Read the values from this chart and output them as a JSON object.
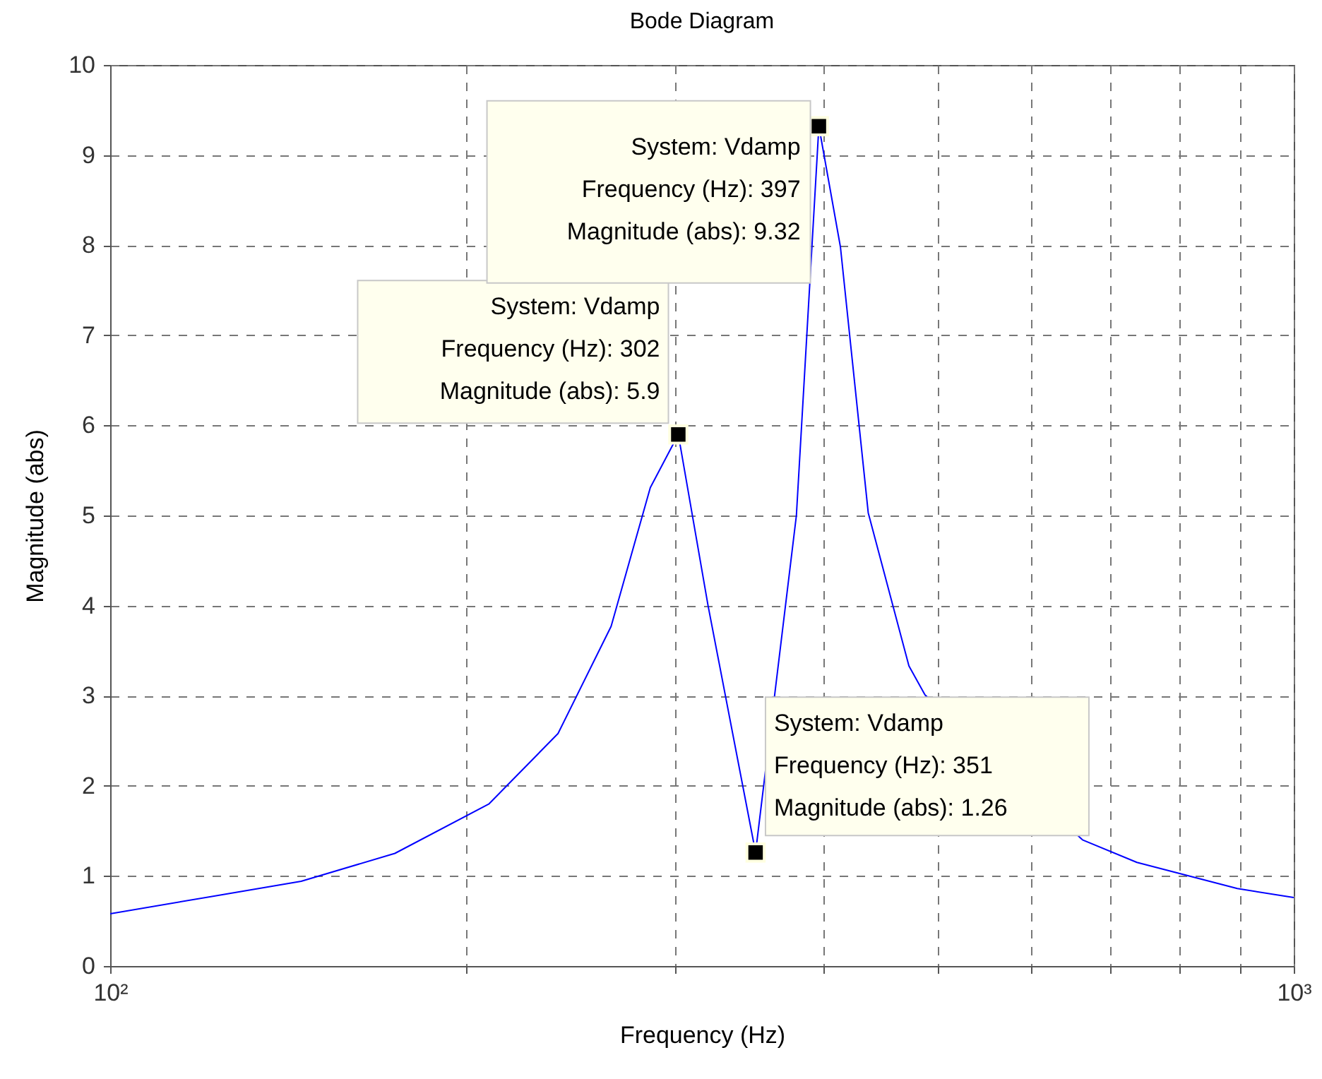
{
  "chart_data": {
    "type": "line",
    "title": "Bode Diagram",
    "xlabel": "Frequency  (Hz)",
    "ylabel": "Magnitude (abs)",
    "log": "x",
    "grid": true,
    "xlim": [
      100,
      1000
    ],
    "xticks": [
      {
        "value": 100,
        "label": "10²"
      },
      {
        "value": 200,
        "label": null
      },
      {
        "value": 300,
        "label": null
      },
      {
        "value": 400,
        "label": null
      },
      {
        "value": 500,
        "label": null
      },
      {
        "value": 600,
        "label": null
      },
      {
        "value": 700,
        "label": null
      },
      {
        "value": 800,
        "label": null
      },
      {
        "value": 900,
        "label": null
      },
      {
        "value": 1000,
        "label": "10³"
      }
    ],
    "ylim": [
      0,
      10
    ],
    "yticks": [
      0,
      1,
      2,
      3,
      4,
      5,
      6,
      7,
      8,
      9,
      10
    ],
    "series": [
      {
        "type": "line",
        "color": "#0000ff",
        "line_style": "solid",
        "x": [
          100,
          145,
          174,
          209,
          239,
          265,
          286,
          302,
          320,
          351,
          380,
          397,
          414,
          437,
          473,
          488,
          663,
          737,
          896,
          1000
        ],
        "values": [
          0.58,
          0.94,
          1.25,
          1.8,
          2.58,
          3.77,
          5.31,
          5.9,
          4.0,
          1.26,
          5.0,
          9.32,
          7.98,
          5.03,
          3.33,
          3.01,
          1.4,
          1.15,
          0.86,
          0.76
        ]
      },
      {
        "type": "scatter",
        "color": "#000000",
        "marker": "square",
        "x": [
          302,
          351,
          397
        ],
        "values": [
          5.9,
          1.26,
          9.32
        ]
      }
    ],
    "annotations": [
      {
        "text": "System: Vdamp\nFrequency (Hz): 302\nMagnitude (abs): 5.9",
        "x": 302,
        "y": 5.9
      },
      {
        "text": "System: Vdamp\nFrequency (Hz): 351\nMagnitude (abs): 1.26",
        "x": 351,
        "y": 1.26
      },
      {
        "text": "System: Vdamp\nFrequency (Hz): 397\nMagnitude (abs): 9.32",
        "x": 397,
        "y": 9.32
      }
    ]
  }
}
